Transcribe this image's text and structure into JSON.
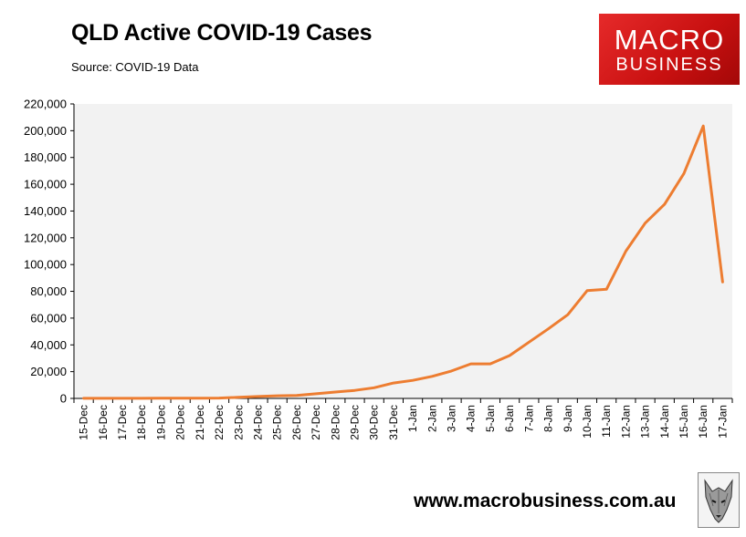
{
  "header": {
    "title": "QLD Active COVID-19 Cases",
    "subtitle": "Source: COVID-19 Data"
  },
  "logo": {
    "line1": "MACRO",
    "line2": "BUSINESS"
  },
  "footer": {
    "url": "www.macrobusiness.com.au"
  },
  "colors": {
    "line": "#ed7d31",
    "plot_bg": "#f2f2f2",
    "logo_red": "#d81e1e"
  },
  "chart_data": {
    "type": "line",
    "title": "QLD Active COVID-19 Cases",
    "subtitle": "Source: COVID-19 Data",
    "xlabel": "",
    "ylabel": "",
    "ylim": [
      0,
      220000
    ],
    "grid": false,
    "legend": "none",
    "yticks": [
      0,
      20000,
      40000,
      60000,
      80000,
      100000,
      120000,
      140000,
      160000,
      180000,
      200000,
      220000
    ],
    "ytick_labels": [
      "0",
      "20,000",
      "40,000",
      "60,000",
      "80,000",
      "100,000",
      "120,000",
      "140,000",
      "160,000",
      "180,000",
      "200,000",
      "220,000"
    ],
    "categories": [
      "15-Dec",
      "16-Dec",
      "17-Dec",
      "18-Dec",
      "19-Dec",
      "20-Dec",
      "21-Dec",
      "22-Dec",
      "23-Dec",
      "24-Dec",
      "25-Dec",
      "26-Dec",
      "27-Dec",
      "28-Dec",
      "29-Dec",
      "30-Dec",
      "31-Dec",
      "1-Jan",
      "2-Jan",
      "3-Jan",
      "4-Jan",
      "5-Jan",
      "6-Jan",
      "7-Jan",
      "8-Jan",
      "9-Jan",
      "10-Jan",
      "11-Jan",
      "12-Jan",
      "13-Jan",
      "14-Jan",
      "15-Jan",
      "16-Jan",
      "17-Jan"
    ],
    "series": [
      {
        "values": [
          50,
          60,
          70,
          90,
          110,
          140,
          200,
          300,
          800,
          1400,
          2000,
          2200,
          3500,
          4800,
          6000,
          8000,
          11500,
          13500,
          16500,
          20500,
          25800,
          25800,
          32000,
          42000,
          52000,
          62500,
          80500,
          81500,
          110000,
          131000,
          145000,
          168000,
          203500,
          87000
        ]
      }
    ]
  }
}
